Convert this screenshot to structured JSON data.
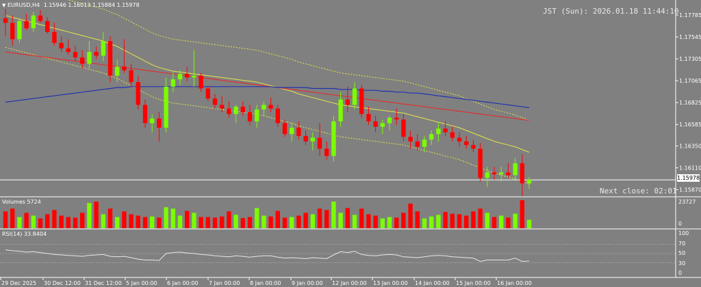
{
  "header": {
    "symbol": "EURUSD,H4",
    "ohlc": "1.15946 1.16013 1.15884 1.15978",
    "clock": "JST (Sun): 2026.01.18 11:44:10",
    "next_close": "Next close: 02:01"
  },
  "price_axis": {
    "ticks": [
      "1.17785",
      "1.17545",
      "1.17305",
      "1.17065",
      "1.16825",
      "1.16585",
      "1.16350",
      "1.16110",
      "1.15870"
    ],
    "current_price": "1.15978"
  },
  "volumes_panel": {
    "label": "Volumes 5724",
    "max_label": "23727",
    "min_label": "0"
  },
  "rsi_panel": {
    "label": "RSI(14) 33.8404",
    "levels": [
      "100",
      "70",
      "50",
      "30",
      "0"
    ]
  },
  "time_axis": [
    "29 Dec 2025",
    "30 Dec 12:00",
    "31 Dec 12:00",
    "5 Jan 00:00",
    "6 Jan 00:00",
    "7 Jan 00:00",
    "8 Jan 00:00",
    "9 Jan 00:00",
    "12 Jan 00:00",
    "13 Jan 00:00",
    "14 Jan 00:00",
    "15 Jan 00:00",
    "16 Jan 00:00"
  ],
  "colors": {
    "bull": "#7cfc00",
    "bear": "#ff0000",
    "ma_red": "#e03030",
    "ma_blue": "#2030b0",
    "band_yellow": "#e6e64a",
    "background": "#808080"
  },
  "chart_data": {
    "type": "candlestick",
    "series": [
      {
        "o": 1.1775,
        "h": 1.1785,
        "l": 1.1755,
        "c": 1.177
      },
      {
        "o": 1.177,
        "h": 1.1778,
        "l": 1.1745,
        "c": 1.1752
      },
      {
        "o": 1.1752,
        "h": 1.1775,
        "l": 1.1748,
        "c": 1.1772
      },
      {
        "o": 1.1772,
        "h": 1.178,
        "l": 1.1762,
        "c": 1.1764
      },
      {
        "o": 1.1764,
        "h": 1.1782,
        "l": 1.176,
        "c": 1.1778
      },
      {
        "o": 1.1778,
        "h": 1.1784,
        "l": 1.177,
        "c": 1.1772
      },
      {
        "o": 1.1772,
        "h": 1.1776,
        "l": 1.1758,
        "c": 1.176
      },
      {
        "o": 1.176,
        "h": 1.177,
        "l": 1.1745,
        "c": 1.1748
      },
      {
        "o": 1.1748,
        "h": 1.1755,
        "l": 1.1738,
        "c": 1.1742
      },
      {
        "o": 1.1742,
        "h": 1.1752,
        "l": 1.1735,
        "c": 1.1738
      },
      {
        "o": 1.1738,
        "h": 1.1745,
        "l": 1.1728,
        "c": 1.1732
      },
      {
        "o": 1.1732,
        "h": 1.174,
        "l": 1.172,
        "c": 1.1725
      },
      {
        "o": 1.1725,
        "h": 1.175,
        "l": 1.172,
        "c": 1.1738
      },
      {
        "o": 1.1738,
        "h": 1.1744,
        "l": 1.173,
        "c": 1.1734
      },
      {
        "o": 1.1734,
        "h": 1.176,
        "l": 1.1728,
        "c": 1.175
      },
      {
        "o": 1.175,
        "h": 1.1755,
        "l": 1.1705,
        "c": 1.1712
      },
      {
        "o": 1.1712,
        "h": 1.173,
        "l": 1.1705,
        "c": 1.1722
      },
      {
        "o": 1.1722,
        "h": 1.1752,
        "l": 1.1715,
        "c": 1.1718
      },
      {
        "o": 1.1718,
        "h": 1.1725,
        "l": 1.17,
        "c": 1.1705
      },
      {
        "o": 1.1705,
        "h": 1.1712,
        "l": 1.1675,
        "c": 1.168
      },
      {
        "o": 1.168,
        "h": 1.1686,
        "l": 1.1655,
        "c": 1.166
      },
      {
        "o": 1.166,
        "h": 1.167,
        "l": 1.165,
        "c": 1.1665
      },
      {
        "o": 1.1665,
        "h": 1.1672,
        "l": 1.164,
        "c": 1.1655
      },
      {
        "o": 1.1655,
        "h": 1.171,
        "l": 1.165,
        "c": 1.17
      },
      {
        "o": 1.17,
        "h": 1.1716,
        "l": 1.1694,
        "c": 1.1708
      },
      {
        "o": 1.1708,
        "h": 1.1718,
        "l": 1.1702,
        "c": 1.1714
      },
      {
        "o": 1.1714,
        "h": 1.1722,
        "l": 1.1706,
        "c": 1.171
      },
      {
        "o": 1.171,
        "h": 1.174,
        "l": 1.17,
        "c": 1.1712
      },
      {
        "o": 1.1712,
        "h": 1.1715,
        "l": 1.1694,
        "c": 1.1698
      },
      {
        "o": 1.1698,
        "h": 1.17,
        "l": 1.1684,
        "c": 1.1687
      },
      {
        "o": 1.1687,
        "h": 1.1692,
        "l": 1.1676,
        "c": 1.168
      },
      {
        "o": 1.168,
        "h": 1.169,
        "l": 1.1672,
        "c": 1.1676
      },
      {
        "o": 1.1676,
        "h": 1.1684,
        "l": 1.1666,
        "c": 1.167
      },
      {
        "o": 1.167,
        "h": 1.168,
        "l": 1.166,
        "c": 1.1678
      },
      {
        "o": 1.1678,
        "h": 1.1684,
        "l": 1.1668,
        "c": 1.1672
      },
      {
        "o": 1.1672,
        "h": 1.168,
        "l": 1.1658,
        "c": 1.1662
      },
      {
        "o": 1.1662,
        "h": 1.168,
        "l": 1.1655,
        "c": 1.1675
      },
      {
        "o": 1.1675,
        "h": 1.1684,
        "l": 1.1668,
        "c": 1.168
      },
      {
        "o": 1.168,
        "h": 1.1688,
        "l": 1.1672,
        "c": 1.1676
      },
      {
        "o": 1.1676,
        "h": 1.168,
        "l": 1.1656,
        "c": 1.166
      },
      {
        "o": 1.166,
        "h": 1.1664,
        "l": 1.1645,
        "c": 1.1648
      },
      {
        "o": 1.1648,
        "h": 1.166,
        "l": 1.164,
        "c": 1.1655
      },
      {
        "o": 1.1655,
        "h": 1.1662,
        "l": 1.1642,
        "c": 1.1646
      },
      {
        "o": 1.1646,
        "h": 1.1652,
        "l": 1.1636,
        "c": 1.164
      },
      {
        "o": 1.164,
        "h": 1.165,
        "l": 1.163,
        "c": 1.1644
      },
      {
        "o": 1.1644,
        "h": 1.166,
        "l": 1.1624,
        "c": 1.1632
      },
      {
        "o": 1.1632,
        "h": 1.164,
        "l": 1.162,
        "c": 1.1624
      },
      {
        "o": 1.1624,
        "h": 1.1668,
        "l": 1.1618,
        "c": 1.1662
      },
      {
        "o": 1.1662,
        "h": 1.1694,
        "l": 1.1656,
        "c": 1.1686
      },
      {
        "o": 1.1686,
        "h": 1.17,
        "l": 1.1672,
        "c": 1.168
      },
      {
        "o": 1.168,
        "h": 1.1705,
        "l": 1.1675,
        "c": 1.1698
      },
      {
        "o": 1.1698,
        "h": 1.1702,
        "l": 1.1665,
        "c": 1.167
      },
      {
        "o": 1.167,
        "h": 1.1678,
        "l": 1.1658,
        "c": 1.1662
      },
      {
        "o": 1.1662,
        "h": 1.1668,
        "l": 1.165,
        "c": 1.1656
      },
      {
        "o": 1.1656,
        "h": 1.1664,
        "l": 1.1648,
        "c": 1.166
      },
      {
        "o": 1.166,
        "h": 1.1668,
        "l": 1.1652,
        "c": 1.1666
      },
      {
        "o": 1.1666,
        "h": 1.1676,
        "l": 1.1658,
        "c": 1.1664
      },
      {
        "o": 1.1664,
        "h": 1.167,
        "l": 1.164,
        "c": 1.1645
      },
      {
        "o": 1.1645,
        "h": 1.1652,
        "l": 1.1632,
        "c": 1.164
      },
      {
        "o": 1.164,
        "h": 1.1648,
        "l": 1.163,
        "c": 1.1634
      },
      {
        "o": 1.1634,
        "h": 1.1646,
        "l": 1.1628,
        "c": 1.1642
      },
      {
        "o": 1.1642,
        "h": 1.1652,
        "l": 1.1636,
        "c": 1.1648
      },
      {
        "o": 1.1648,
        "h": 1.166,
        "l": 1.164,
        "c": 1.1654
      },
      {
        "o": 1.1654,
        "h": 1.1662,
        "l": 1.1646,
        "c": 1.165
      },
      {
        "o": 1.165,
        "h": 1.1656,
        "l": 1.164,
        "c": 1.1644
      },
      {
        "o": 1.1644,
        "h": 1.165,
        "l": 1.1634,
        "c": 1.164
      },
      {
        "o": 1.164,
        "h": 1.1646,
        "l": 1.1632,
        "c": 1.1636
      },
      {
        "o": 1.1636,
        "h": 1.1642,
        "l": 1.1628,
        "c": 1.1632
      },
      {
        "o": 1.1632,
        "h": 1.1638,
        "l": 1.1596,
        "c": 1.16
      },
      {
        "o": 1.16,
        "h": 1.1612,
        "l": 1.159,
        "c": 1.1606
      },
      {
        "o": 1.1606,
        "h": 1.1612,
        "l": 1.1598,
        "c": 1.1604
      },
      {
        "o": 1.1604,
        "h": 1.1612,
        "l": 1.1596,
        "c": 1.1606
      },
      {
        "o": 1.1606,
        "h": 1.1616,
        "l": 1.16,
        "c": 1.1603
      },
      {
        "o": 1.1603,
        "h": 1.1622,
        "l": 1.1598,
        "c": 1.1616
      },
      {
        "o": 1.1616,
        "h": 1.1626,
        "l": 1.158,
        "c": 1.1594
      },
      {
        "o": 1.1594,
        "h": 1.1601,
        "l": 1.1588,
        "c": 1.1598
      }
    ],
    "volumes": [
      60,
      70,
      40,
      55,
      45,
      35,
      50,
      65,
      45,
      40,
      38,
      55,
      90,
      95,
      50,
      70,
      40,
      60,
      50,
      45,
      40,
      42,
      38,
      75,
      70,
      45,
      62,
      55,
      40,
      40,
      38,
      42,
      60,
      48,
      36,
      40,
      72,
      45,
      42,
      62,
      38,
      40,
      45,
      55,
      50,
      70,
      65,
      95,
      55,
      72,
      48,
      70,
      50,
      45,
      35,
      40,
      38,
      55,
      88,
      60,
      35,
      42,
      48,
      58,
      52,
      50,
      45,
      60,
      70,
      55,
      40,
      45,
      38,
      52,
      100,
      30
    ],
    "rsi": [
      58,
      56,
      55,
      53,
      54,
      52,
      50,
      48,
      47,
      46,
      45,
      44,
      46,
      47,
      48,
      44,
      43,
      44,
      41,
      38,
      36,
      36,
      35,
      50,
      52,
      53,
      51,
      50,
      48,
      47,
      45,
      44,
      43,
      45,
      44,
      42,
      44,
      45,
      45,
      42,
      40,
      41,
      40,
      39,
      41,
      40,
      39,
      47,
      54,
      52,
      55,
      48,
      46,
      45,
      47,
      48,
      47,
      43,
      42,
      41,
      43,
      45,
      46,
      45,
      43,
      42,
      41,
      40,
      33,
      36,
      36,
      36,
      36,
      40,
      33,
      34
    ],
    "ma_red": [
      1.1738,
      1.1737,
      1.1736,
      1.1735,
      1.1734,
      1.1733,
      1.1732,
      1.1731,
      1.173,
      1.1729,
      1.1728,
      1.1727,
      1.1726,
      1.1725,
      1.1724,
      1.1723,
      1.1722,
      1.1721,
      1.172,
      1.1719,
      1.1718,
      1.1717,
      1.1716,
      1.1715,
      1.1714,
      1.1713,
      1.1712,
      1.1711,
      1.171,
      1.1709,
      1.1708,
      1.1707,
      1.1706,
      1.1705,
      1.1704,
      1.1703,
      1.1702,
      1.1701,
      1.17,
      1.1699,
      1.1698,
      1.1697,
      1.1696,
      1.1695,
      1.1694,
      1.1693,
      1.1692,
      1.1691,
      1.169,
      1.1689,
      1.1688,
      1.1687,
      1.1686,
      1.1685,
      1.1684,
      1.1683,
      1.1682,
      1.1681,
      1.168,
      1.1679,
      1.1678,
      1.1677,
      1.1676,
      1.1675,
      1.1674,
      1.1673,
      1.1672,
      1.1671,
      1.167,
      1.1669,
      1.1668,
      1.1667,
      1.1666,
      1.1665,
      1.1664,
      1.1663
    ],
    "ma_blue": [
      1.1683,
      1.1684,
      1.1685,
      1.1686,
      1.1687,
      1.1688,
      1.1689,
      1.169,
      1.1691,
      1.1692,
      1.1693,
      1.1694,
      1.1695,
      1.1696,
      1.1697,
      1.1698,
      1.1699,
      1.1699,
      1.17,
      1.17,
      1.17,
      1.17,
      1.17,
      1.17,
      1.17,
      1.17,
      1.17,
      1.17,
      1.17,
      1.17,
      1.17,
      1.17,
      1.17,
      1.17,
      1.17,
      1.17,
      1.17,
      1.17,
      1.17,
      1.1699,
      1.1699,
      1.1699,
      1.1699,
      1.1699,
      1.1698,
      1.1698,
      1.1698,
      1.1698,
      1.1697,
      1.1697,
      1.1697,
      1.1696,
      1.1696,
      1.1696,
      1.1695,
      1.1695,
      1.1694,
      1.1694,
      1.1693,
      1.1693,
      1.1692,
      1.1691,
      1.169,
      1.1689,
      1.1688,
      1.1687,
      1.1686,
      1.1685,
      1.1684,
      1.1683,
      1.1682,
      1.1681,
      1.168,
      1.1679,
      1.1678,
      1.1677
    ],
    "band_mid": [
      1.1778,
      1.1776,
      1.1774,
      1.1772,
      1.177,
      1.1768,
      1.1766,
      1.1764,
      1.1762,
      1.176,
      1.1758,
      1.1756,
      1.1754,
      1.1752,
      1.175,
      1.1747,
      1.1744,
      1.174,
      1.1736,
      1.1732,
      1.1728,
      1.1724,
      1.1721,
      1.1719,
      1.1717,
      1.1716,
      1.1715,
      1.1714,
      1.1713,
      1.1712,
      1.1711,
      1.171,
      1.1709,
      1.1708,
      1.1707,
      1.1706,
      1.1705,
      1.1703,
      1.1701,
      1.1699,
      1.1697,
      1.1695,
      1.1692,
      1.169,
      1.1688,
      1.1686,
      1.1684,
      1.1682,
      1.168,
      1.1679,
      1.1678,
      1.1677,
      1.1676,
      1.1675,
      1.1674,
      1.1673,
      1.1672,
      1.1671,
      1.1669,
      1.1667,
      1.1665,
      1.1663,
      1.1661,
      1.1659,
      1.1657,
      1.1655,
      1.1652,
      1.1649,
      1.1646,
      1.1643,
      1.164,
      1.1638,
      1.1636,
      1.1634,
      1.1631,
      1.1628
    ],
    "band_width": 0.0035,
    "ylim": [
      1.158,
      1.1795
    ]
  }
}
